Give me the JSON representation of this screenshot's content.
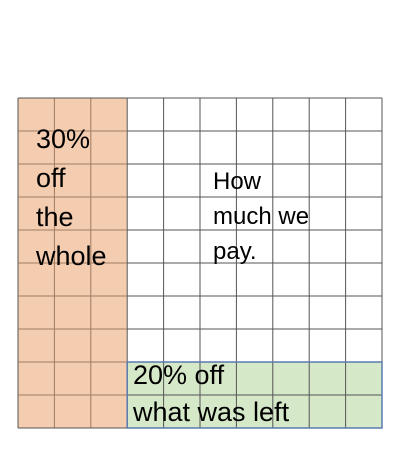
{
  "colors": {
    "left_region_fill": "#f4cdb0",
    "bottom_region_fill": "#d5e8c8",
    "grid_line": "#555555",
    "left_region_grid_line": "#a07a60",
    "bottom_region_border": "#5a7bb0",
    "text": "#000000"
  },
  "grid": {
    "columns": 10,
    "rows": 10,
    "left_region_columns": 3,
    "bottom_region_rows": 2
  },
  "labels": {
    "left_region": [
      "30%",
      "off",
      "the",
      "whole"
    ],
    "center_region": [
      "How",
      "much we",
      "pay."
    ],
    "bottom_region": [
      "20% off",
      "what was left"
    ]
  }
}
